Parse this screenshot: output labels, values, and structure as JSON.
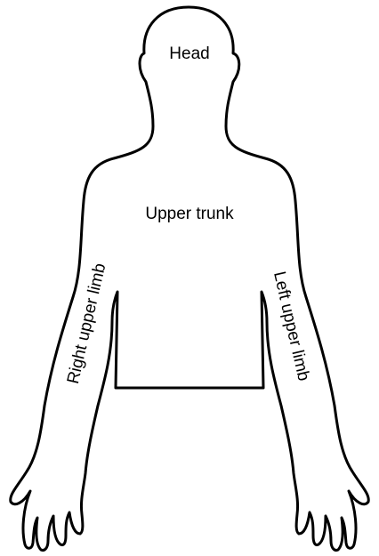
{
  "labels": {
    "head": "Head",
    "upper_trunk": "Upper trunk",
    "right_upper_limb": "Right upper limb",
    "left_upper_limb": "Left upper limb"
  },
  "colors": {
    "outline": "#000000",
    "background": "#ffffff"
  }
}
